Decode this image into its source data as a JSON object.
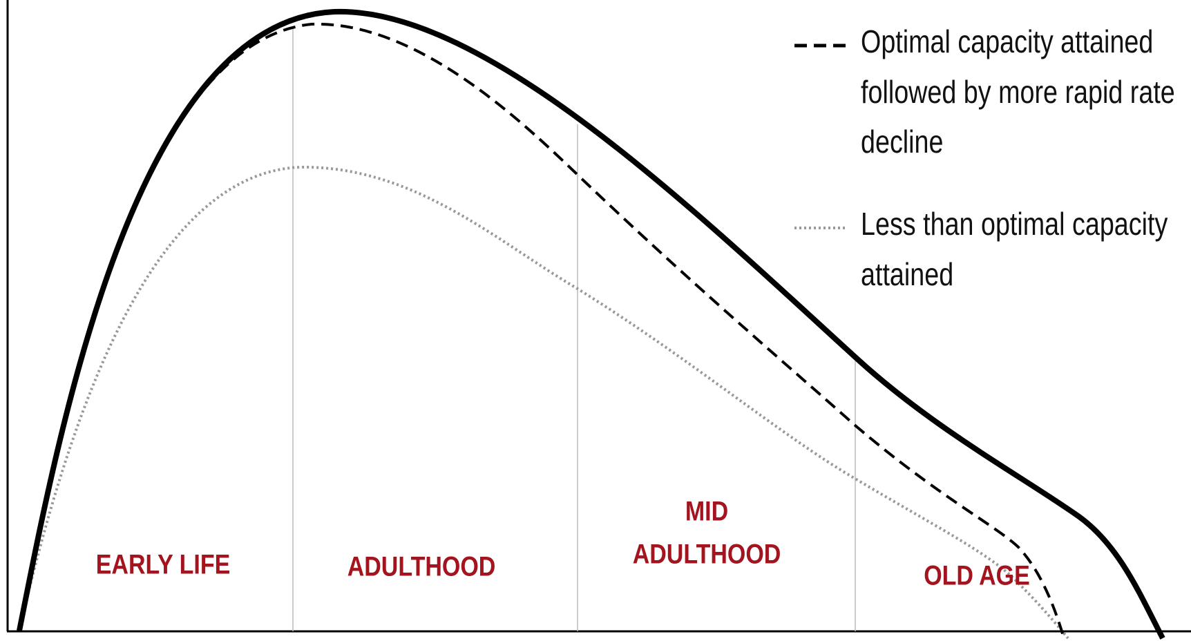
{
  "legend": [
    {
      "lines": [
        "Optimal capacity attained",
        "followed by more rapid rate",
        "decline"
      ]
    },
    {
      "lines": [
        "Less than optimal capacity",
        "attained"
      ]
    }
  ],
  "stages": [
    {
      "lines": [
        "EARLY LIFE"
      ]
    },
    {
      "lines": [
        "ADULTHOOD"
      ]
    },
    {
      "lines": [
        "MID",
        "ADULTHOOD"
      ]
    },
    {
      "lines": [
        "OLD AGE"
      ]
    }
  ]
}
